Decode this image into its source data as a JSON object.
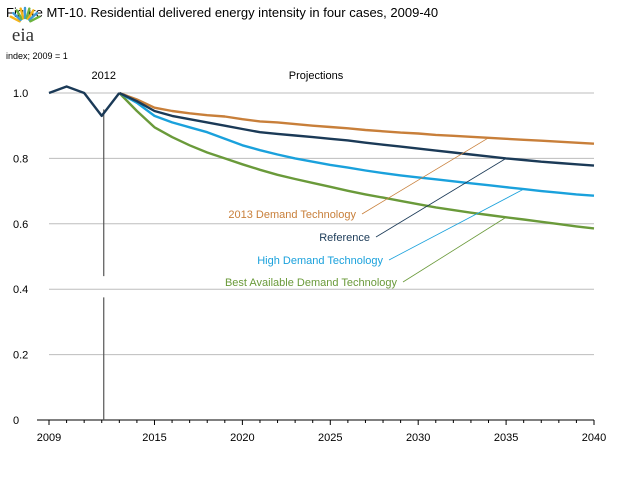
{
  "chart_data": {
    "type": "line",
    "title": "Figure MT-10. Residential delivered energy intensity in four cases, 2009-40",
    "ylabel": "index; 2009 = 1",
    "xlabel": "",
    "xlim": [
      2009,
      2040
    ],
    "ylim": [
      0,
      1.0
    ],
    "x_ticks": [
      "2009",
      "2015",
      "2020",
      "2025",
      "2030",
      "2035",
      "2040"
    ],
    "y_ticks": [
      "0",
      "0.2",
      "0.4",
      "0.6",
      "0.8",
      "1.0"
    ],
    "grid": "horizontal",
    "history": {
      "x": [
        2009,
        2010,
        2011,
        2012,
        2013
      ],
      "values": [
        1.0,
        1.02,
        1.0,
        0.93,
        1.0
      ]
    },
    "divider": {
      "x": 2012,
      "label": "2012"
    },
    "projections_label": "Projections",
    "x": [
      2013,
      2014,
      2015,
      2016,
      2017,
      2018,
      2019,
      2020,
      2021,
      2022,
      2023,
      2024,
      2025,
      2026,
      2027,
      2028,
      2029,
      2030,
      2031,
      2032,
      2033,
      2034,
      2035,
      2036,
      2037,
      2038,
      2039,
      2040
    ],
    "series": [
      {
        "name": "2013 Demand Technology",
        "color": "#c87f3a",
        "values": [
          1.0,
          0.98,
          0.955,
          0.945,
          0.938,
          0.932,
          0.928,
          0.92,
          0.913,
          0.91,
          0.905,
          0.9,
          0.896,
          0.892,
          0.887,
          0.883,
          0.879,
          0.876,
          0.872,
          0.869,
          0.866,
          0.863,
          0.86,
          0.857,
          0.854,
          0.851,
          0.848,
          0.845
        ]
      },
      {
        "name": "Reference",
        "color": "#1b3a57",
        "values": [
          1.0,
          0.975,
          0.945,
          0.93,
          0.92,
          0.91,
          0.9,
          0.89,
          0.88,
          0.875,
          0.87,
          0.865,
          0.86,
          0.855,
          0.848,
          0.842,
          0.836,
          0.83,
          0.824,
          0.818,
          0.812,
          0.806,
          0.8,
          0.795,
          0.79,
          0.786,
          0.782,
          0.778
        ]
      },
      {
        "name": "High Demand Technology",
        "color": "#1aa1dc",
        "values": [
          1.0,
          0.97,
          0.93,
          0.91,
          0.895,
          0.88,
          0.86,
          0.84,
          0.825,
          0.812,
          0.8,
          0.79,
          0.78,
          0.772,
          0.763,
          0.755,
          0.748,
          0.742,
          0.736,
          0.73,
          0.724,
          0.718,
          0.712,
          0.706,
          0.7,
          0.695,
          0.69,
          0.686
        ]
      },
      {
        "name": "Best Available Demand Technology",
        "color": "#6a9a3a",
        "values": [
          1.0,
          0.945,
          0.895,
          0.865,
          0.84,
          0.818,
          0.8,
          0.782,
          0.765,
          0.75,
          0.737,
          0.725,
          0.713,
          0.701,
          0.69,
          0.68,
          0.67,
          0.66,
          0.65,
          0.642,
          0.634,
          0.627,
          0.62,
          0.613,
          0.606,
          0.599,
          0.592,
          0.586
        ]
      }
    ]
  },
  "logo": {
    "text": "eia",
    "colors": [
      "#f4b41a",
      "#3d9bd6",
      "#6cb33f"
    ]
  }
}
